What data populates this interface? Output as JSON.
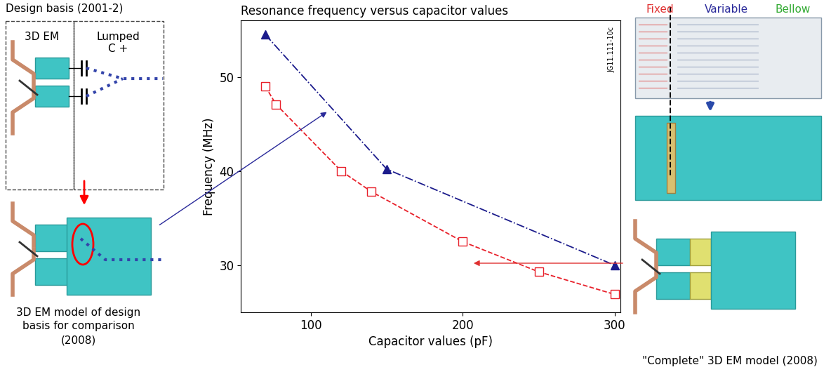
{
  "chart_data": {
    "type": "line",
    "title": "Resonance frequency versus capacitor values",
    "x_label": "Capacitor values (pF)",
    "y_label": "Frequency (MHz)",
    "xlim": [
      54,
      304
    ],
    "xticks": [
      100,
      200,
      300
    ],
    "ylim": [
      25,
      56
    ],
    "yticks": [
      30,
      40,
      50
    ],
    "grid": false,
    "series": [
      {
        "color": "#1c1c8c",
        "marker": "triangle",
        "line_style": "dashdot",
        "x": [
          70,
          150,
          300
        ],
        "values": [
          54.5,
          40.2,
          30.0
        ]
      },
      {
        "color": "#e8202a",
        "marker": "square",
        "line_style": "dashed",
        "x": [
          70,
          77,
          120,
          140,
          200,
          250,
          300
        ],
        "values": [
          49.0,
          47.1,
          40.0,
          37.8,
          32.5,
          29.3,
          26.9
        ]
      }
    ],
    "annotations": {
      "figure_id": "JG11.111-10c",
      "left_top": "Design basis (2001-2)",
      "left_3d": "3D EM",
      "left_lumped": "Lumped C +",
      "left_caption": "3D EM model of design basis for comparison (2008)",
      "right_fixed": "Fixed",
      "right_variable": "Variable",
      "right_bellow": "Bellow",
      "right_caption": "\"Complete\" 3D EM model (2008)"
    }
  }
}
